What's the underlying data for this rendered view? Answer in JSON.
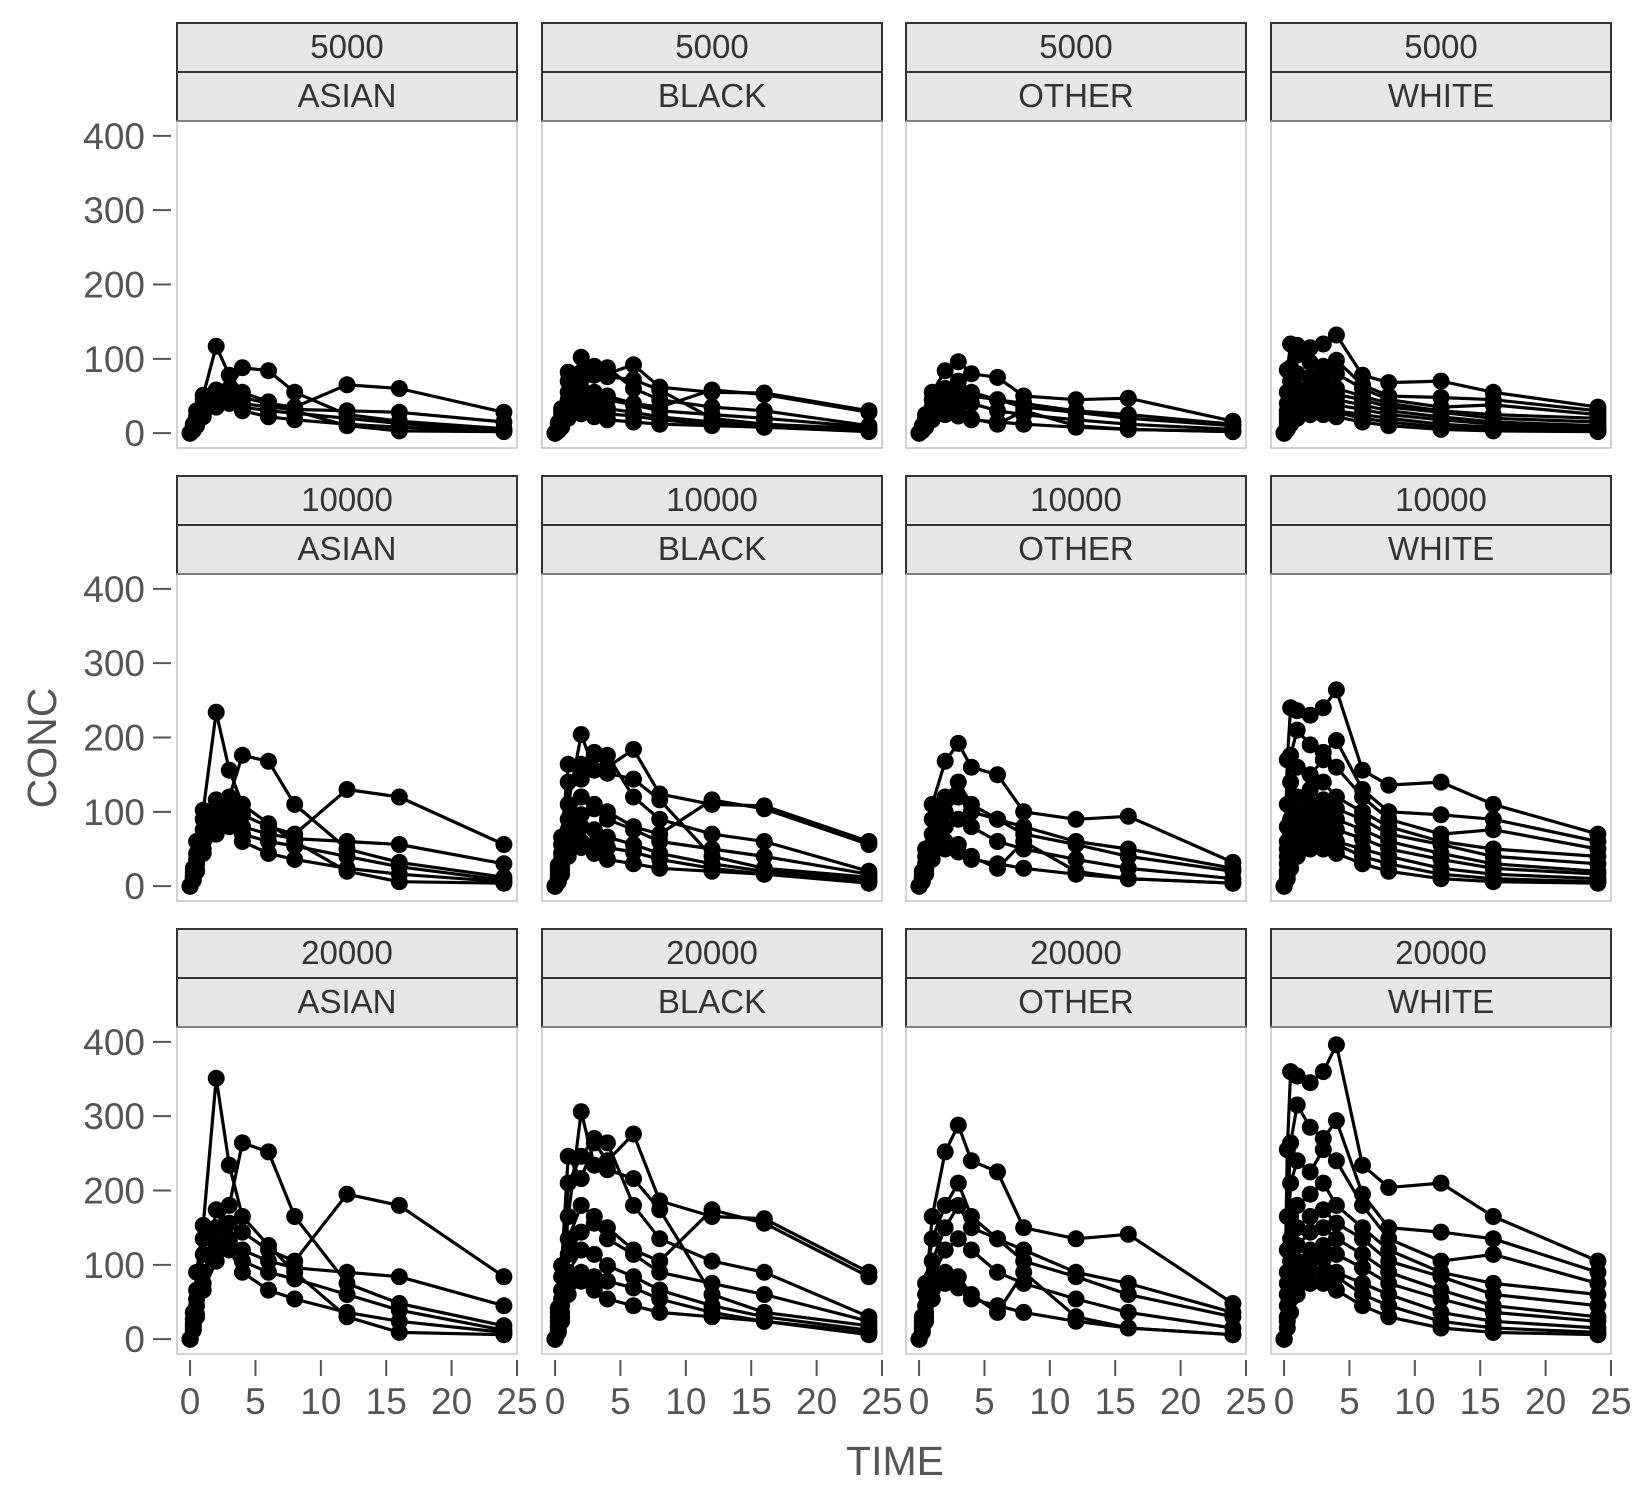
{
  "chart_data": {
    "type": "line",
    "xlabel": "TIME",
    "ylabel": "CONC",
    "xlim": [
      -1,
      25
    ],
    "ylim": [
      -20,
      420
    ],
    "x_ticks": [
      0,
      5,
      10,
      15,
      20,
      25
    ],
    "y_ticks": [
      0,
      100,
      200,
      300,
      400
    ],
    "grid": false,
    "legend": "none",
    "markers": true,
    "line_color": "#000000",
    "strip_fill": "#e6e6e6",
    "facet_rows": [
      "5000",
      "10000",
      "20000"
    ],
    "facet_cols": [
      "ASIAN",
      "BLACK",
      "OTHER",
      "WHITE"
    ],
    "time_points": [
      0,
      0.25,
      0.5,
      1,
      2,
      3,
      4,
      6,
      8,
      12,
      16,
      24
    ],
    "profiles_at_5000": {
      "ASIAN": [
        [
          0,
          5,
          11,
          25,
          58,
          44,
          35,
          30,
          27,
          20,
          13,
          4
        ],
        [
          0,
          12,
          30,
          51,
          117,
          78,
          55,
          42,
          30,
          10,
          3,
          2
        ],
        [
          0,
          9,
          22,
          45,
          50,
          60,
          88,
          84,
          55,
          25,
          16,
          6
        ],
        [
          0,
          7,
          18,
          38,
          45,
          52,
          48,
          40,
          35,
          65,
          60,
          28
        ],
        [
          0,
          6,
          15,
          30,
          40,
          45,
          40,
          35,
          32,
          30,
          28,
          15
        ],
        [
          0,
          4,
          10,
          22,
          35,
          40,
          30,
          22,
          18,
          12,
          8,
          3
        ]
      ],
      "BLACK": [
        [
          0,
          14,
          33,
          82,
          72,
          88,
          80,
          92,
          62,
          55,
          54,
          30
        ],
        [
          0,
          10,
          22,
          55,
          102,
          78,
          76,
          72,
          58,
          20,
          12,
          6
        ],
        [
          0,
          12,
          28,
          70,
          82,
          90,
          88,
          60,
          45,
          35,
          30,
          10
        ],
        [
          0,
          8,
          18,
          45,
          60,
          55,
          50,
          40,
          35,
          58,
          52,
          28
        ],
        [
          0,
          6,
          15,
          38,
          48,
          52,
          45,
          38,
          30,
          25,
          20,
          8
        ],
        [
          0,
          5,
          12,
          30,
          40,
          38,
          33,
          28,
          22,
          15,
          10,
          4
        ],
        [
          0,
          4,
          10,
          25,
          30,
          28,
          26,
          23,
          18,
          12,
          8,
          3
        ],
        [
          0,
          3,
          8,
          20,
          26,
          22,
          18,
          15,
          12,
          10,
          8,
          2
        ]
      ],
      "OTHER": [
        [
          0,
          8,
          20,
          55,
          84,
          96,
          80,
          75,
          50,
          45,
          47,
          16
        ],
        [
          0,
          10,
          25,
          45,
          60,
          70,
          55,
          45,
          35,
          28,
          20,
          10
        ],
        [
          0,
          6,
          15,
          35,
          50,
          60,
          50,
          45,
          40,
          30,
          25,
          12
        ],
        [
          0,
          5,
          12,
          28,
          40,
          45,
          40,
          30,
          25,
          18,
          12,
          5
        ],
        [
          0,
          4,
          10,
          22,
          30,
          28,
          20,
          12,
          30,
          10,
          5,
          2
        ],
        [
          0,
          3,
          8,
          18,
          25,
          23,
          18,
          15,
          12,
          8,
          5,
          2
        ]
      ],
      "WHITE": [
        [
          0,
          85,
          120,
          118,
          115,
          120,
          132,
          78,
          68,
          70,
          55,
          35
        ],
        [
          0,
          55,
          88,
          105,
          95,
          90,
          98,
          65,
          50,
          48,
          45,
          30
        ],
        [
          0,
          40,
          70,
          80,
          75,
          85,
          80,
          60,
          45,
          35,
          38,
          25
        ],
        [
          0,
          30,
          55,
          60,
          65,
          70,
          60,
          50,
          40,
          30,
          25,
          20
        ],
        [
          0,
          25,
          45,
          50,
          55,
          58,
          52,
          45,
          35,
          28,
          20,
          15
        ],
        [
          0,
          20,
          35,
          42,
          48,
          50,
          45,
          38,
          30,
          22,
          15,
          10
        ],
        [
          0,
          15,
          28,
          35,
          40,
          42,
          38,
          32,
          25,
          18,
          12,
          8
        ],
        [
          0,
          10,
          22,
          30,
          35,
          36,
          30,
          25,
          20,
          12,
          8,
          5
        ],
        [
          0,
          8,
          18,
          25,
          30,
          30,
          28,
          20,
          15,
          8,
          5,
          3
        ],
        [
          0,
          5,
          12,
          20,
          25,
          25,
          22,
          15,
          10,
          5,
          3,
          2
        ]
      ]
    },
    "dose_scale": {
      "5000": 1,
      "10000": 2,
      "20000": 3
    }
  }
}
